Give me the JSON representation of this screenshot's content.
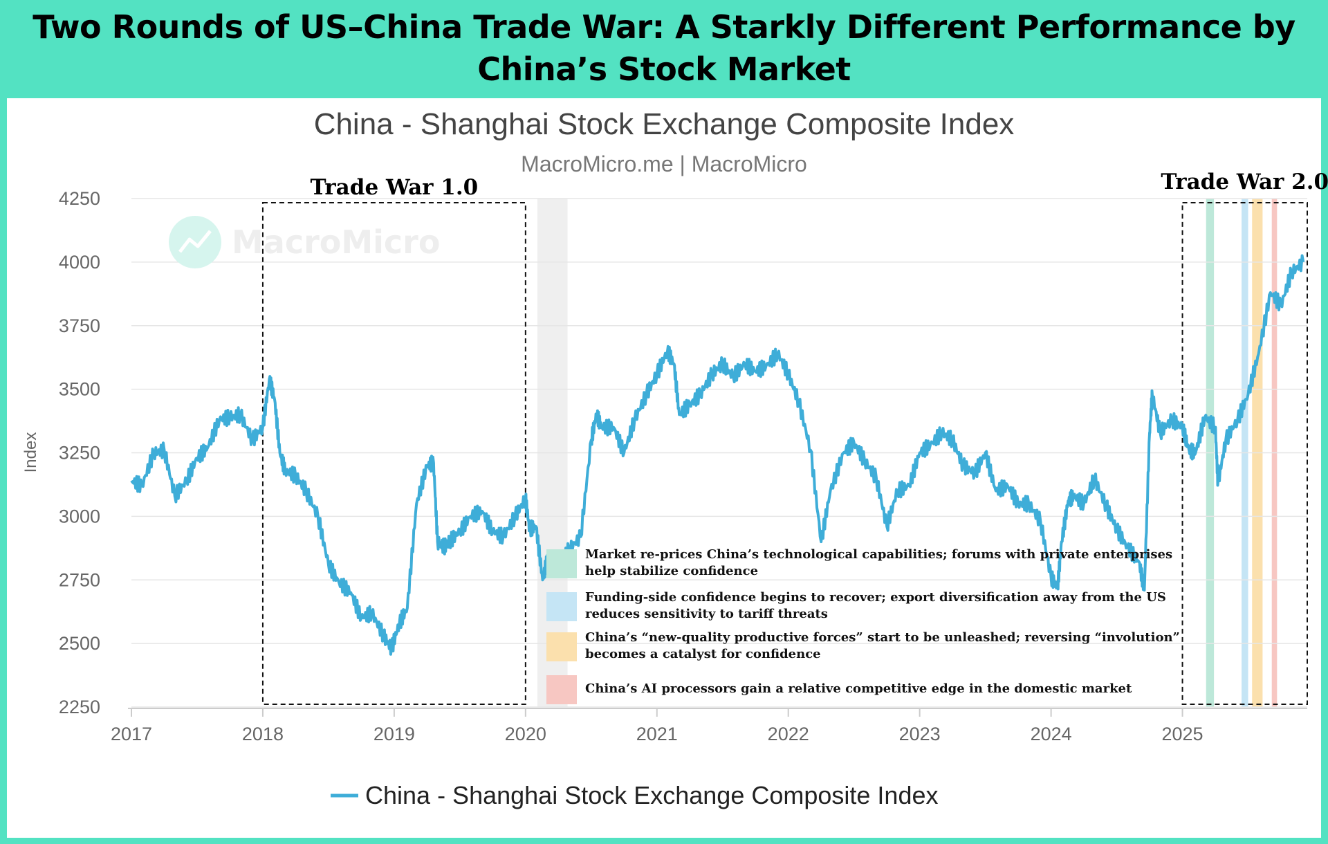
{
  "header": {
    "title": "Two Rounds of US–China Trade War: A Starkly Different Performance by China’s Stock Market"
  },
  "colors": {
    "banner": "#53e2c2",
    "line": "#3eadd8",
    "shade_gray": "#efefef",
    "green": "#bde8d9",
    "blue": "#c5e5f5",
    "orange": "#fbe0ad",
    "pink": "#f7c7c2"
  },
  "annotations": {
    "tw1_label": "Trade War 1.0",
    "tw2_label": "Trade War 2.0",
    "legend": [
      {
        "color": "green",
        "text": "Market re-prices China’s technological capabilities; forums with private enterprises help stabilize confidence"
      },
      {
        "color": "blue",
        "text": "Funding-side confidence begins to recover; export diversification away from the US reduces sensitivity to tariff threats"
      },
      {
        "color": "orange",
        "text": "China’s “new-quality productive forces” start to be unleashed; reversing “involution” becomes a catalyst for confidence"
      },
      {
        "color": "pink",
        "text": "China’s AI processors gain a relative competitive edge in the domestic market"
      }
    ]
  },
  "watermark": "MacroMicro",
  "chart_data": {
    "type": "line",
    "title": "China - Shanghai Stock Exchange Composite Index",
    "subtitle": "MacroMicro.me | MacroMicro",
    "ylabel": "Index",
    "xlabel": "",
    "ylim": [
      2250,
      4250
    ],
    "xlim": [
      2017.0,
      2025.95
    ],
    "yticks": [
      2250,
      2500,
      2750,
      3000,
      3250,
      3500,
      3750,
      4000,
      4250
    ],
    "xticks": [
      "2017",
      "2018",
      "2019",
      "2020",
      "2021",
      "2022",
      "2023",
      "2024",
      "2025"
    ],
    "legend_position": "bottom-center",
    "grid": true,
    "series": [
      {
        "name": "China - Shanghai Stock Exchange Composite Index",
        "x": [
          2017.0,
          2017.08,
          2017.17,
          2017.25,
          2017.33,
          2017.42,
          2017.5,
          2017.58,
          2017.67,
          2017.75,
          2017.83,
          2017.92,
          2018.0,
          2018.05,
          2018.09,
          2018.13,
          2018.17,
          2018.25,
          2018.33,
          2018.42,
          2018.5,
          2018.58,
          2018.67,
          2018.75,
          2018.83,
          2018.92,
          2018.98,
          2019.04,
          2019.1,
          2019.17,
          2019.25,
          2019.3,
          2019.33,
          2019.38,
          2019.42,
          2019.5,
          2019.58,
          2019.67,
          2019.75,
          2019.83,
          2019.92,
          2020.0,
          2020.03,
          2020.08,
          2020.13,
          2020.17,
          2020.25,
          2020.33,
          2020.42,
          2020.5,
          2020.54,
          2020.58,
          2020.67,
          2020.75,
          2020.83,
          2020.92,
          2021.0,
          2021.08,
          2021.13,
          2021.17,
          2021.25,
          2021.33,
          2021.42,
          2021.5,
          2021.58,
          2021.67,
          2021.75,
          2021.83,
          2021.92,
          2022.0,
          2022.08,
          2022.17,
          2022.25,
          2022.32,
          2022.42,
          2022.5,
          2022.58,
          2022.67,
          2022.75,
          2022.83,
          2022.92,
          2023.0,
          2023.08,
          2023.17,
          2023.25,
          2023.33,
          2023.42,
          2023.5,
          2023.58,
          2023.67,
          2023.75,
          2023.83,
          2023.92,
          2024.0,
          2024.05,
          2024.08,
          2024.13,
          2024.17,
          2024.25,
          2024.33,
          2024.42,
          2024.5,
          2024.58,
          2024.67,
          2024.71,
          2024.75,
          2024.77,
          2024.83,
          2024.92,
          2025.0,
          2025.05,
          2025.1,
          2025.17,
          2025.25,
          2025.27,
          2025.33,
          2025.42,
          2025.5,
          2025.58,
          2025.67,
          2025.75,
          2025.83,
          2025.92
        ],
        "values": [
          3140,
          3120,
          3250,
          3260,
          3080,
          3140,
          3230,
          3270,
          3380,
          3390,
          3400,
          3300,
          3350,
          3540,
          3460,
          3250,
          3180,
          3160,
          3100,
          3000,
          2810,
          2740,
          2700,
          2600,
          2620,
          2530,
          2480,
          2580,
          2640,
          3050,
          3200,
          3210,
          2900,
          2880,
          2900,
          2940,
          3000,
          3020,
          2940,
          2920,
          3000,
          3070,
          2950,
          2960,
          2750,
          2840,
          2800,
          2870,
          2920,
          3300,
          3400,
          3350,
          3350,
          3250,
          3380,
          3480,
          3560,
          3650,
          3600,
          3400,
          3440,
          3480,
          3560,
          3600,
          3550,
          3600,
          3570,
          3590,
          3640,
          3560,
          3450,
          3260,
          2900,
          3100,
          3250,
          3290,
          3220,
          3150,
          2960,
          3100,
          3120,
          3250,
          3280,
          3330,
          3300,
          3200,
          3170,
          3250,
          3100,
          3120,
          3050,
          3050,
          2980,
          2760,
          2720,
          2900,
          3060,
          3080,
          3050,
          3150,
          3040,
          2950,
          2880,
          2820,
          2710,
          3330,
          3480,
          3330,
          3380,
          3350,
          3260,
          3250,
          3390,
          3350,
          3130,
          3300,
          3380,
          3480,
          3640,
          3880,
          3830,
          3960,
          4000
        ]
      }
    ],
    "shaded_regions": [
      {
        "x0": 2020.09,
        "x1": 2020.32,
        "color": "shade_gray"
      },
      {
        "x0": 2025.18,
        "x1": 2025.24,
        "color": "green"
      },
      {
        "x0": 2025.45,
        "x1": 2025.5,
        "color": "blue"
      },
      {
        "x0": 2025.53,
        "x1": 2025.61,
        "color": "orange"
      },
      {
        "x0": 2025.68,
        "x1": 2025.72,
        "color": "pink"
      }
    ],
    "boxes": [
      {
        "x0": 2018.0,
        "x1": 2020.0,
        "label": "tw1_label"
      },
      {
        "x0": 2025.0,
        "x1": 2025.95,
        "label": "tw2_label"
      }
    ]
  }
}
